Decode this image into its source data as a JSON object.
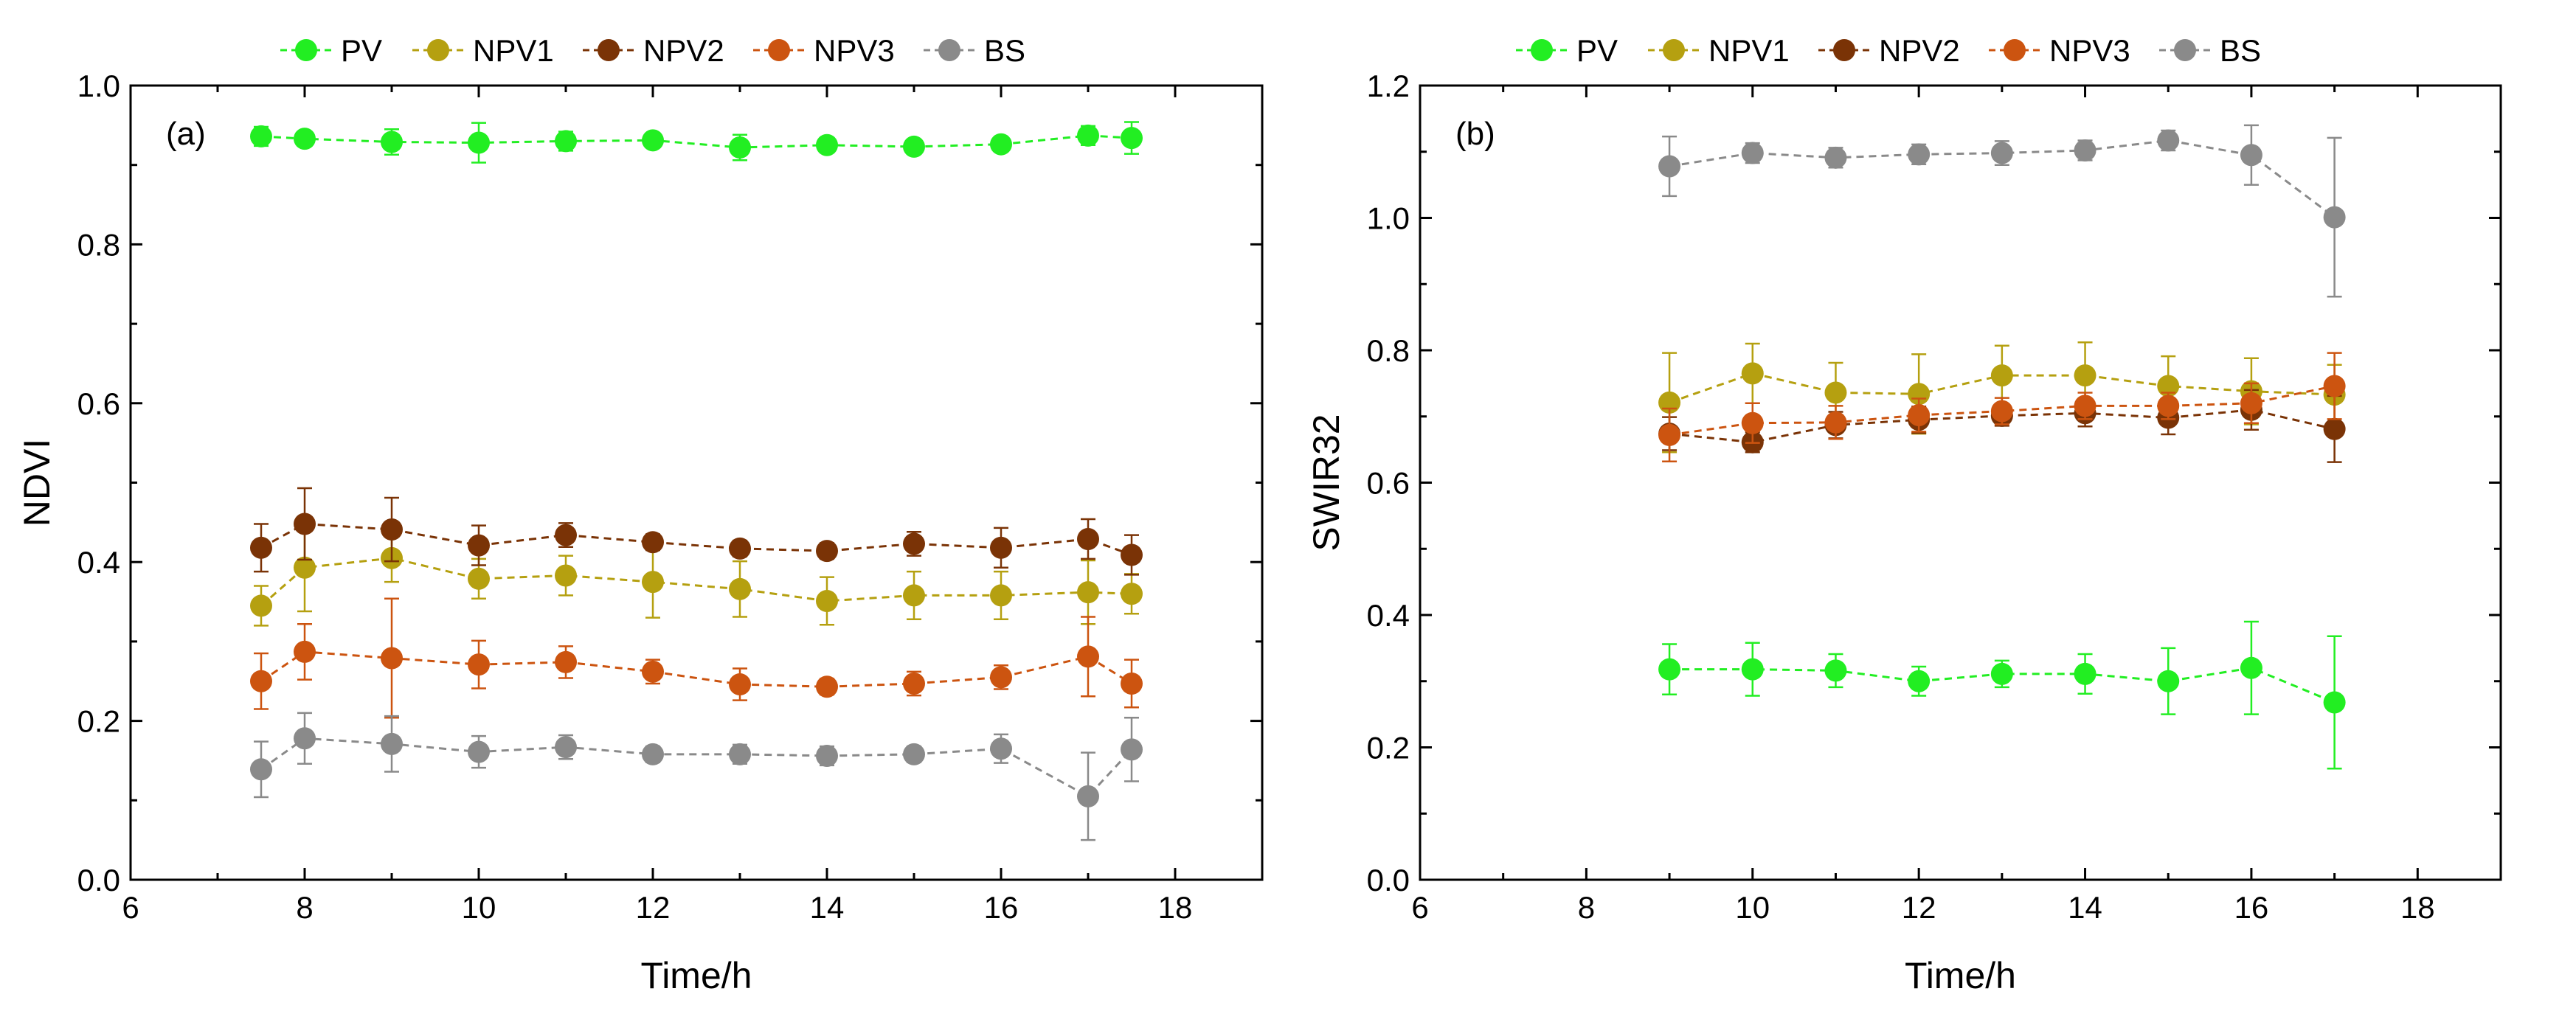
{
  "legend_items": [
    {
      "label": "PV",
      "color": "#22ee22"
    },
    {
      "label": "NPV1",
      "color": "#b5a010"
    },
    {
      "label": "NPV2",
      "color": "#7a3306"
    },
    {
      "label": "NPV3",
      "color": "#cc5410"
    },
    {
      "label": "BS",
      "color": "#8a8a8a"
    }
  ],
  "chart_data": [
    {
      "type": "line",
      "panel_label": "(a)",
      "xlabel": "Time/h",
      "ylabel": "NDVI",
      "xlim": [
        6,
        19
      ],
      "ylim": [
        0,
        1.0
      ],
      "x_ticks": [
        6,
        8,
        10,
        12,
        14,
        16,
        18
      ],
      "y_ticks": [
        0,
        0.2,
        0.4,
        0.6,
        0.8,
        1.0
      ],
      "x_tick_labels": [
        "6",
        "8",
        "10",
        "12",
        "14",
        "16",
        "18"
      ],
      "y_tick_labels": [
        "0.0",
        "0.2",
        "0.4",
        "0.6",
        "0.8",
        "1.0"
      ],
      "x": [
        7.5,
        8,
        9,
        10,
        11,
        12,
        13,
        14,
        15,
        16,
        17,
        17.5
      ],
      "series": [
        {
          "name": "PV",
          "color": "#22ee22",
          "values": [
            0.936,
            0.933,
            0.929,
            0.928,
            0.93,
            0.931,
            0.922,
            0.925,
            0.923,
            0.926,
            0.937,
            0.934
          ],
          "errors": [
            0.012,
            0.008,
            0.016,
            0.025,
            0.012,
            0.008,
            0.016,
            0.008,
            0.008,
            0.008,
            0.012,
            0.02
          ]
        },
        {
          "name": "NPV1",
          "color": "#b5a010",
          "values": [
            0.345,
            0.393,
            0.405,
            0.379,
            0.383,
            0.375,
            0.366,
            0.351,
            0.358,
            0.358,
            0.362,
            0.36
          ],
          "errors": [
            0.025,
            0.055,
            0.03,
            0.025,
            0.025,
            0.045,
            0.035,
            0.03,
            0.03,
            0.03,
            0.04,
            0.025
          ]
        },
        {
          "name": "NPV2",
          "color": "#7a3306",
          "values": [
            0.418,
            0.448,
            0.441,
            0.421,
            0.434,
            0.425,
            0.417,
            0.414,
            0.423,
            0.418,
            0.429,
            0.409
          ],
          "errors": [
            0.03,
            0.045,
            0.04,
            0.025,
            0.015,
            0.01,
            0.01,
            0.01,
            0.015,
            0.025,
            0.025,
            0.025
          ]
        },
        {
          "name": "NPV3",
          "color": "#cc5410",
          "values": [
            0.25,
            0.287,
            0.279,
            0.271,
            0.274,
            0.262,
            0.246,
            0.243,
            0.247,
            0.255,
            0.281,
            0.247
          ],
          "errors": [
            0.035,
            0.035,
            0.075,
            0.03,
            0.02,
            0.015,
            0.02,
            0.01,
            0.015,
            0.015,
            0.05,
            0.03
          ]
        },
        {
          "name": "BS",
          "color": "#8a8a8a",
          "values": [
            0.139,
            0.178,
            0.171,
            0.161,
            0.167,
            0.158,
            0.158,
            0.156,
            0.158,
            0.165,
            0.105,
            0.164
          ],
          "errors": [
            0.035,
            0.032,
            0.035,
            0.02,
            0.015,
            0.01,
            0.012,
            0.012,
            0.01,
            0.018,
            0.055,
            0.04
          ]
        }
      ]
    },
    {
      "type": "line",
      "panel_label": "(b)",
      "xlabel": "Time/h",
      "ylabel": "SWIR32",
      "xlim": [
        6,
        19
      ],
      "ylim": [
        0,
        1.2
      ],
      "x_ticks": [
        6,
        8,
        10,
        12,
        14,
        16,
        18
      ],
      "y_ticks": [
        0,
        0.2,
        0.4,
        0.6,
        0.8,
        1.0,
        1.2
      ],
      "x_tick_labels": [
        "6",
        "8",
        "10",
        "12",
        "14",
        "16",
        "18"
      ],
      "y_tick_labels": [
        "0.0",
        "0.2",
        "0.4",
        "0.6",
        "0.8",
        "1.0",
        "1.2"
      ],
      "x": [
        9,
        10,
        11,
        12,
        13,
        14,
        15,
        16,
        17
      ],
      "series": [
        {
          "name": "PV",
          "color": "#22ee22",
          "values": [
            0.318,
            0.318,
            0.316,
            0.3,
            0.311,
            0.311,
            0.3,
            0.32,
            0.268
          ],
          "errors": [
            0.038,
            0.04,
            0.025,
            0.022,
            0.02,
            0.03,
            0.05,
            0.07,
            0.1
          ]
        },
        {
          "name": "NPV1",
          "color": "#b5a010",
          "values": [
            0.721,
            0.765,
            0.736,
            0.734,
            0.762,
            0.762,
            0.746,
            0.738,
            0.733
          ],
          "errors": [
            0.075,
            0.045,
            0.045,
            0.06,
            0.045,
            0.05,
            0.045,
            0.05,
            0.045
          ]
        },
        {
          "name": "NPV2",
          "color": "#7a3306",
          "values": [
            0.674,
            0.661,
            0.687,
            0.695,
            0.701,
            0.705,
            0.698,
            0.71,
            0.681
          ],
          "errors": [
            0.025,
            0.015,
            0.02,
            0.02,
            0.015,
            0.02,
            0.025,
            0.03,
            0.05
          ]
        },
        {
          "name": "NPV3",
          "color": "#cc5410",
          "values": [
            0.672,
            0.69,
            0.691,
            0.702,
            0.708,
            0.716,
            0.716,
            0.72,
            0.746
          ],
          "errors": [
            0.04,
            0.03,
            0.025,
            0.025,
            0.02,
            0.02,
            0.02,
            0.03,
            0.05
          ]
        },
        {
          "name": "BS",
          "color": "#8a8a8a",
          "values": [
            1.078,
            1.098,
            1.091,
            1.096,
            1.098,
            1.102,
            1.117,
            1.095,
            1.001
          ],
          "errors": [
            0.045,
            0.015,
            0.015,
            0.015,
            0.018,
            0.015,
            0.015,
            0.045,
            0.12
          ]
        }
      ]
    }
  ]
}
